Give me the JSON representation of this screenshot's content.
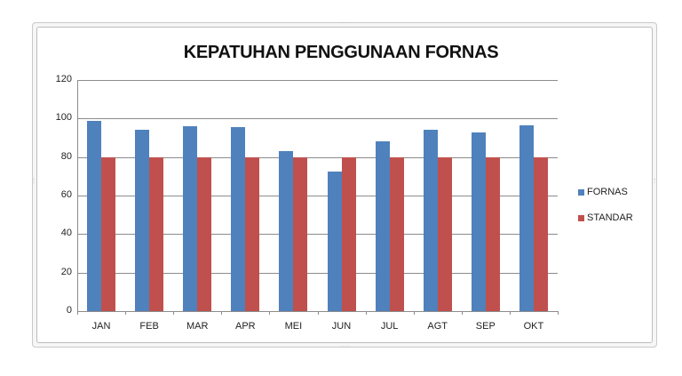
{
  "chart_data": {
    "type": "bar",
    "title": "KEPATUHAN PENGGUNAAN FORNAS",
    "xlabel": "",
    "ylabel": "",
    "categories": [
      "JAN",
      "FEB",
      "MAR",
      "APR",
      "MEI",
      "JUN",
      "JUL",
      "AGT",
      "SEP",
      "OKT"
    ],
    "series": [
      {
        "name": "FORNAS",
        "color": "#4f81bd",
        "values": [
          98.6,
          94,
          95.8,
          95.4,
          83,
          72.6,
          88,
          94,
          92.6,
          96.3
        ]
      },
      {
        "name": "STANDAR",
        "color": "#c0504d",
        "values": [
          80,
          80,
          80,
          80,
          80,
          80,
          80,
          80,
          80,
          80
        ]
      }
    ],
    "ylim": [
      0,
      120
    ],
    "yticks": [
      0,
      20,
      40,
      60,
      80,
      100,
      120
    ],
    "grid": true,
    "legend_position": "right"
  },
  "legend": {
    "items": [
      {
        "label": "FORNAS",
        "color": "#4f81bd"
      },
      {
        "label": "STANDAR",
        "color": "#c0504d"
      }
    ]
  }
}
